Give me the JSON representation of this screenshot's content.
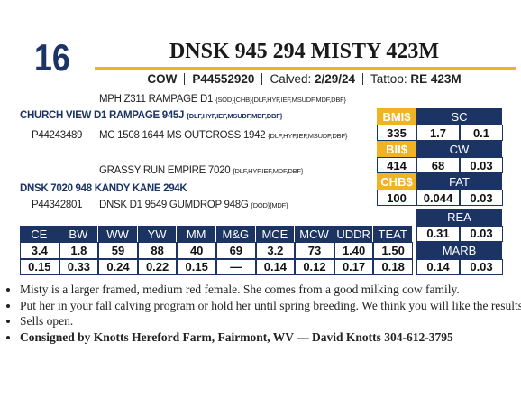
{
  "lot": "16",
  "header": {
    "title": "DNSK 945 294 MISTY 423M",
    "sex": "COW",
    "registration": "P44552920",
    "calved_label": "Calved:",
    "calved": "2/29/24",
    "tattoo_label": "Tattoo:",
    "tattoo": "RE 423M"
  },
  "pedigree": {
    "sire_sire": {
      "name": "MPH Z311 RAMPAGE D1",
      "tags": "{SOD}{CHB}{DLF,HYF,IEF,MSUDF,MDF,DBF}"
    },
    "sire": {
      "name": "CHURCH VIEW D1 RAMPAGE 945J",
      "tags": "{DLF,HYF,IEF,MSUDF,MDF,DBF}"
    },
    "sire_reg": "P44243489",
    "sire_dam": {
      "name": "MC 1508 1644 MS OUTCROSS 1942",
      "tags": "{DLF,HYF,IEF,MSUDF,DBF}"
    },
    "dam_sire": {
      "name": "GRASSY RUN EMPIRE 7020",
      "tags": "{DLF,HYF,IEF,MDF,DBF}"
    },
    "dam": {
      "name": "DNSK 7020 948 KANDY KANE 294K"
    },
    "dam_reg": "P44342801",
    "dam_dam": {
      "name": "DNSK D1 9549 GUMDROP 948G",
      "tags": "{DOD}{MDF}"
    }
  },
  "indexes": [
    {
      "label": "BMI$",
      "value": "335"
    },
    {
      "label": "BII$",
      "value": "414"
    },
    {
      "label": "CHB$",
      "value": "100"
    }
  ],
  "traits": [
    {
      "label": "SC",
      "values": [
        "1.7",
        "0.1"
      ]
    },
    {
      "label": "CW",
      "values": [
        "68",
        "0.03"
      ]
    },
    {
      "label": "FAT",
      "values": [
        "0.044",
        "0.03"
      ]
    },
    {
      "label": "REA",
      "values": [
        "0.31",
        "0.03"
      ]
    },
    {
      "label": "MARB",
      "values": [
        "0.14",
        "0.03"
      ]
    }
  ],
  "epd_table": {
    "headers": [
      "CE",
      "BW",
      "WW",
      "YW",
      "MM",
      "M&G",
      "MCE",
      "MCW",
      "UDDR",
      "TEAT"
    ],
    "values": [
      "3.4",
      "1.8",
      "59",
      "88",
      "40",
      "69",
      "3.2",
      "73",
      "1.40",
      "1.50"
    ],
    "accuracy": [
      "0.15",
      "0.33",
      "0.24",
      "0.22",
      "0.15",
      "—",
      "0.14",
      "0.12",
      "0.17",
      "0.18"
    ]
  },
  "notes": [
    "Misty is a larger framed, medium red female. She comes from a good milking cow family.",
    "Put her in your fall calving program or hold her until spring breeding. We think you will like the results.",
    "Sells open.",
    "Consigned by Knotts Hereford Farm, Fairmont, WV — David Knotts 304-612-3795"
  ]
}
